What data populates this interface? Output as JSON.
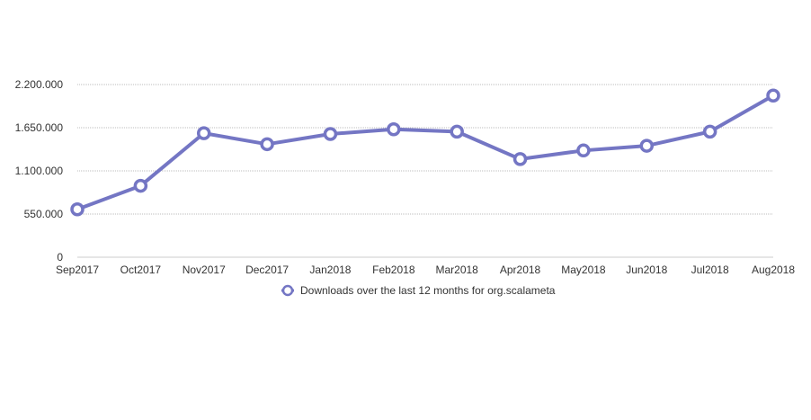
{
  "chart_data": {
    "type": "line",
    "categories": [
      "Sep2017",
      "Oct2017",
      "Nov2017",
      "Dec2017",
      "Jan2018",
      "Feb2018",
      "Mar2018",
      "Apr2018",
      "May2018",
      "Jun2018",
      "Jul2018",
      "Aug2018"
    ],
    "series": [
      {
        "name": "Downloads over the last 12 months for org.scalameta",
        "values": [
          610000,
          910000,
          1580000,
          1440000,
          1570000,
          1630000,
          1600000,
          1250000,
          1360000,
          1420000,
          1600000,
          2060000
        ],
        "color": "#7476c4"
      }
    ],
    "yticks": [
      0,
      550000,
      1100000,
      1650000,
      2200000
    ],
    "ytick_labels": [
      "0",
      "550.000",
      "1.100.000",
      "1.650.000",
      "2.200.000"
    ],
    "ylim": [
      0,
      2200000
    ],
    "grid": true,
    "legend_position": "bottom-center"
  }
}
